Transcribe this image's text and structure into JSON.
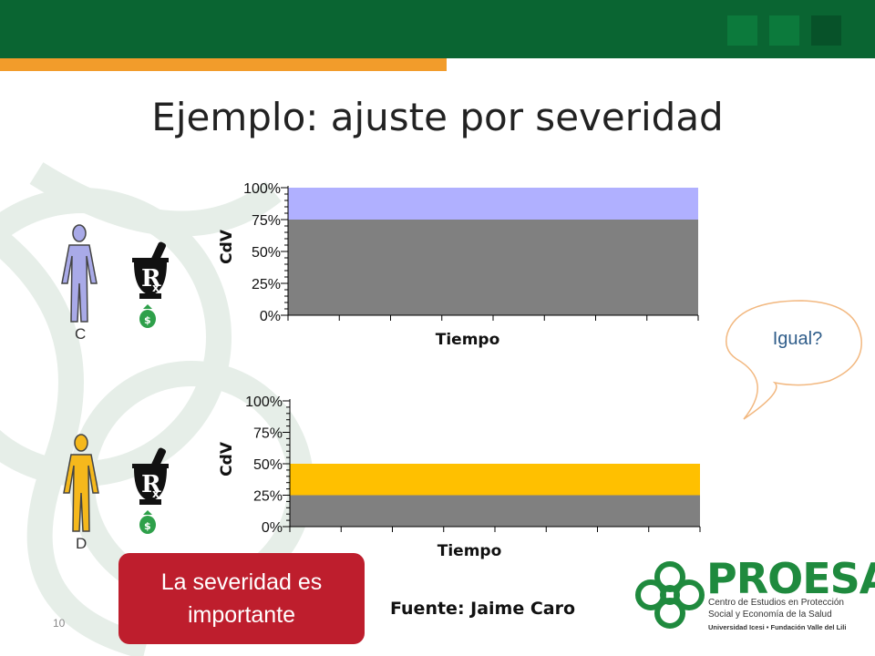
{
  "slide": {
    "title": "Ejemplo: ajuste por severidad",
    "number": "10",
    "source": "Fuente: Jaime Caro",
    "callout_line1": "La severidad es",
    "callout_line2": "importante",
    "bubble_text": "Igual?"
  },
  "patients": [
    {
      "label": "C",
      "color": "#a9aae8"
    },
    {
      "label": "D",
      "color": "#f5b81c"
    }
  ],
  "logo": {
    "name": "PROESA",
    "line1": "Centro de Estudios en Protección",
    "line2": "Social y Economía de la Salud",
    "sub": "Universidad Icesi  •  Fundación Valle del Lili"
  },
  "colors": {
    "header_green": "#0a6532",
    "header_orange": "#f29c2b",
    "bar_gray": "#808080",
    "chart1_top": "#b0b0ff",
    "chart2_band": "#ffc000",
    "callout_red": "#be1e2d"
  },
  "chart_data": [
    {
      "type": "area",
      "xlabel": "Tiempo",
      "ylabel": "CdV",
      "y_ticks": [
        "0%",
        "25%",
        "50%",
        "75%",
        "100%"
      ],
      "ylim": [
        0,
        100
      ],
      "layers": [
        {
          "from": 0,
          "to": 75,
          "color": "#808080"
        },
        {
          "from": 75,
          "to": 100,
          "color": "#b0b0ff"
        }
      ]
    },
    {
      "type": "area",
      "xlabel": "Tiempo",
      "ylabel": "CdV",
      "y_ticks": [
        "0%",
        "25%",
        "50%",
        "75%",
        "100%"
      ],
      "ylim": [
        0,
        100
      ],
      "layers": [
        {
          "from": 0,
          "to": 25,
          "color": "#808080"
        },
        {
          "from": 25,
          "to": 50,
          "color": "#ffc000"
        }
      ]
    }
  ]
}
